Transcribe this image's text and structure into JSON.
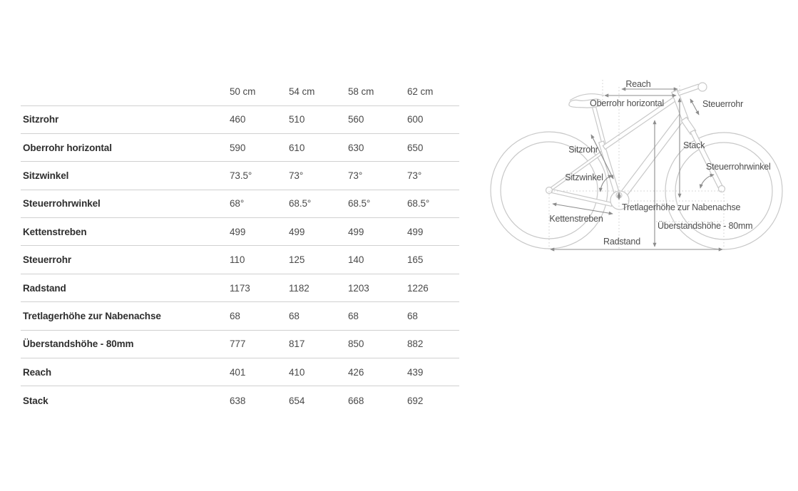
{
  "table": {
    "columns": [
      "50 cm",
      "54 cm",
      "58 cm",
      "62 cm"
    ],
    "rows": [
      {
        "label": "Sitzrohr",
        "values": [
          "460",
          "510",
          "560",
          "600"
        ]
      },
      {
        "label": "Oberrohr horizontal",
        "values": [
          "590",
          "610",
          "630",
          "650"
        ]
      },
      {
        "label": "Sitzwinkel",
        "values": [
          "73.5°",
          "73°",
          "73°",
          "73°"
        ]
      },
      {
        "label": "Steuerrohrwinkel",
        "values": [
          "68°",
          "68.5°",
          "68.5°",
          "68.5°"
        ]
      },
      {
        "label": "Kettenstreben",
        "values": [
          "499",
          "499",
          "499",
          "499"
        ]
      },
      {
        "label": "Steuerrohr",
        "values": [
          "110",
          "125",
          "140",
          "165"
        ]
      },
      {
        "label": "Radstand",
        "values": [
          "1173",
          "1182",
          "1203",
          "1226"
        ]
      },
      {
        "label": "Tretlagerhöhe zur Nabenachse",
        "values": [
          "68",
          "68",
          "68",
          "68"
        ]
      },
      {
        "label": "Überstandshöhe - 80mm",
        "values": [
          "777",
          "817",
          "850",
          "882"
        ]
      },
      {
        "label": "Reach",
        "values": [
          "401",
          "410",
          "426",
          "439"
        ]
      },
      {
        "label": "Stack",
        "values": [
          "638",
          "654",
          "668",
          "692"
        ]
      }
    ]
  },
  "diagram": {
    "labels": {
      "reach": "Reach",
      "oberrohr": "Oberrohr horizontal",
      "steuerrohr": "Steuerrohr",
      "stack": "Stack",
      "sitzrohr": "Sitzrohr",
      "sitzwinkel": "Sitzwinkel",
      "steuerrohrwinkel": "Steuerrohrwinkel",
      "tretlagerhoehe": "Tretlagerhöhe zur Nabenachse",
      "kettenstreben": "Kettenstreben",
      "ueberstandshoehe": "Überstandshöhe - 80mm",
      "radstand": "Radstand"
    },
    "colors": {
      "bike_outline": "#c8c8c8",
      "dimension_arrows": "#8c8c8c",
      "label_text": "#4d4d4d",
      "guide_lines": "#cccccc",
      "table_divider": "#d0d0d0"
    }
  }
}
